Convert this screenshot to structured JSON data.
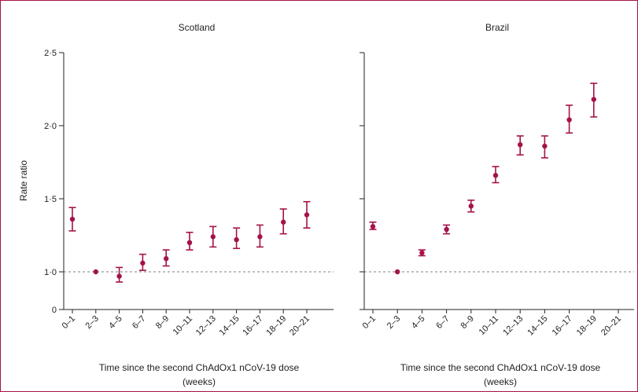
{
  "chart_data": [
    {
      "type": "scatter",
      "title": "Scotland",
      "xlabel": "Time since the second ChAdOx1 nCoV-19 dose",
      "xlabel_line2": "(weeks)",
      "ylabel": "Rate ratio",
      "categories": [
        "0–1",
        "2–3",
        "4–5",
        "6–7",
        "8–9",
        "10–11",
        "12–13",
        "14–15",
        "16–17",
        "18–19",
        "20–21"
      ],
      "values": [
        1.36,
        1.0,
        0.97,
        1.06,
        1.09,
        1.2,
        1.24,
        1.22,
        1.24,
        1.34,
        1.39
      ],
      "lower": [
        1.28,
        1.0,
        0.93,
        1.01,
        1.04,
        1.15,
        1.17,
        1.16,
        1.17,
        1.26,
        1.3
      ],
      "upper": [
        1.44,
        1.0,
        1.03,
        1.12,
        1.15,
        1.27,
        1.31,
        1.3,
        1.32,
        1.43,
        1.48
      ],
      "y_ticks": [
        {
          "value": 0.75,
          "label": "0"
        },
        {
          "value": 1.0,
          "label": "1·0"
        },
        {
          "value": 1.5,
          "label": "1·5"
        },
        {
          "value": 2.0,
          "label": "2·0"
        },
        {
          "value": 2.5,
          "label": "2·5"
        }
      ],
      "ylim": [
        0.75,
        2.5
      ],
      "reference_line": 1.0,
      "color": "#a5124a"
    },
    {
      "type": "scatter",
      "title": "Brazil",
      "xlabel": "Time since the second ChAdOx1 nCoV-19 dose",
      "xlabel_line2": "(weeks)",
      "ylabel": "",
      "categories": [
        "0–1",
        "2–3",
        "4–5",
        "6–7",
        "8–9",
        "10–11",
        "12–13",
        "14–15",
        "16–17",
        "18–19",
        "20–21"
      ],
      "values": [
        1.31,
        1.0,
        1.13,
        1.29,
        1.45,
        1.66,
        1.87,
        1.86,
        2.04,
        2.18
      ],
      "x_index": [
        0,
        1,
        2,
        3,
        4,
        5,
        6,
        7,
        8,
        9
      ],
      "lower": [
        1.29,
        1.0,
        1.11,
        1.26,
        1.41,
        1.61,
        1.8,
        1.78,
        1.95,
        2.06
      ],
      "upper": [
        1.34,
        1.0,
        1.15,
        1.32,
        1.49,
        1.72,
        1.93,
        1.93,
        2.14,
        2.29
      ],
      "y_ticks": [
        {
          "value": 0.75,
          "label": ""
        },
        {
          "value": 1.0,
          "label": ""
        },
        {
          "value": 1.5,
          "label": ""
        },
        {
          "value": 2.0,
          "label": ""
        },
        {
          "value": 2.5,
          "label": ""
        }
      ],
      "ylim": [
        0.75,
        2.5
      ],
      "reference_line": 1.0,
      "color": "#a5124a"
    }
  ]
}
